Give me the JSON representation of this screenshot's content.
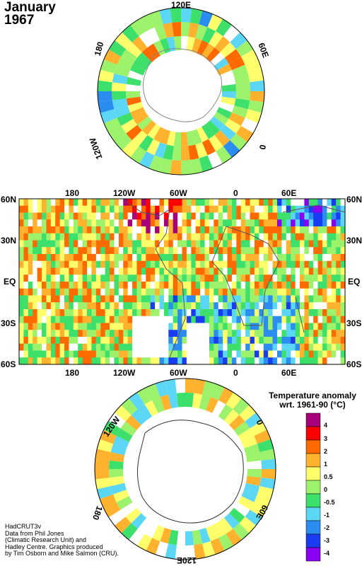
{
  "title": {
    "month": "January",
    "year": "1967"
  },
  "map": {
    "top_labels": [
      "180",
      "120W",
      "60W",
      "0",
      "60E"
    ],
    "bottom_labels": [
      "180",
      "120W",
      "60W",
      "0",
      "60E"
    ],
    "left_labels": [
      "60N",
      "30N",
      "EQ",
      "30S",
      "60S"
    ],
    "right_labels": [
      "60N",
      "30N",
      "EQ",
      "30S",
      "60S"
    ]
  },
  "north_polar": {
    "labels": [
      "120E",
      "60E",
      "0",
      "120W",
      "180"
    ]
  },
  "south_polar": {
    "labels": [
      "120W",
      "0",
      "60E",
      "180",
      "120E"
    ]
  },
  "legend": {
    "title_line1": "Temperature anomaly",
    "title_line2": "wrt. 1961-90  (°C)",
    "labels": [
      "4",
      "3",
      "2",
      "1",
      "0.5",
      "0",
      "-0.5",
      "-1",
      "-2",
      "-3",
      "-4"
    ],
    "colors": [
      "#a8007a",
      "#ff0000",
      "#ff6a00",
      "#ffb22e",
      "#ffff6b",
      "#9cf26b",
      "#3ce06a",
      "#5cd6f5",
      "#2b8df0",
      "#1a3cf0",
      "#8a00f0"
    ]
  },
  "credits": {
    "line1": "HadCRUT3v",
    "line2": "Data from Phil Jones",
    "line3": "(Climatic Research Unit) and",
    "line4": "Hadley Centre.  Graphics produced",
    "line5": "by Tim Osborn and Mike Salmon (CRU)."
  }
}
